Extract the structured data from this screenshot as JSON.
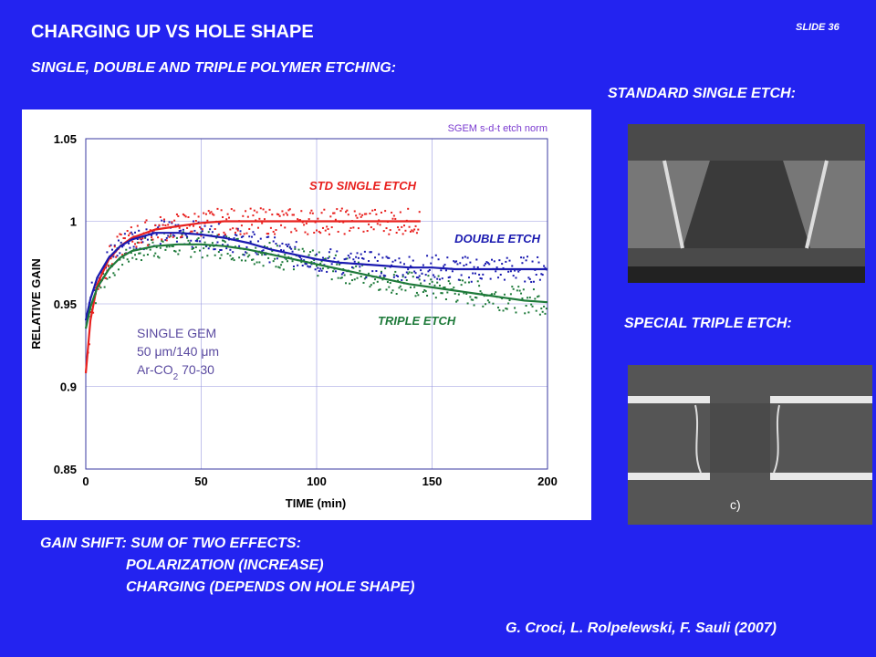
{
  "slide": {
    "title": "CHARGING UP VS HOLE SHAPE",
    "subtitle": "SINGLE, DOUBLE AND TRIPLE POLYMER ETCHING:",
    "number": "SLIDE 36",
    "std_label": "STANDARD SINGLE ETCH:",
    "special_label": "SPECIAL TRIPLE ETCH:",
    "photo2_caption": "c)",
    "gain_heading": "GAIN SHIFT: SUM OF TWO EFFECTS:",
    "gain_items": [
      "POLARIZATION (INCREASE)",
      "CHARGING (DEPENDS ON HOLE SHAPE)"
    ],
    "credit": "G. Croci, L. Rolpelewski, F. Sauli (2007)"
  },
  "chart_data": {
    "type": "scatter",
    "title": "SGEM s-d-t etch norm",
    "xlabel": "TIME (min)",
    "ylabel": "RELATIVE GAIN",
    "xlim": [
      0,
      200
    ],
    "ylim": [
      0.85,
      1.05
    ],
    "xticks": [
      "0",
      "50",
      "100",
      "150",
      "200"
    ],
    "yticks": [
      "0.85",
      "0.9",
      "0.95",
      "1",
      "1.05"
    ],
    "grid": true,
    "annotation": {
      "line1": "SINGLE GEM",
      "line2": "50 μm/140 μm",
      "line3_main": "Ar-CO",
      "line3_sub": "2",
      "line3_end": " 70-30"
    },
    "series": [
      {
        "name": "STD SINGLE ETCH",
        "color": "#e8201e",
        "x": [
          0,
          2,
          5,
          10,
          15,
          20,
          30,
          40,
          50,
          60,
          70,
          80,
          90,
          100,
          110,
          120,
          130,
          140,
          145
        ],
        "fit": [
          0.908,
          0.94,
          0.962,
          0.977,
          0.985,
          0.99,
          0.995,
          0.997,
          0.999,
          1.0,
          1.0,
          1.0,
          1.0,
          1.0,
          1.0,
          1.0,
          1.0,
          1.0,
          1.0
        ]
      },
      {
        "name": "DOUBLE ETCH",
        "color": "#1a1ab0",
        "x": [
          0,
          2,
          5,
          10,
          15,
          20,
          30,
          40,
          50,
          60,
          70,
          80,
          90,
          100,
          110,
          120,
          130,
          140,
          150,
          160,
          170,
          180,
          190,
          200
        ],
        "fit": [
          0.94,
          0.953,
          0.966,
          0.978,
          0.985,
          0.989,
          0.993,
          0.993,
          0.992,
          0.99,
          0.987,
          0.983,
          0.98,
          0.977,
          0.975,
          0.974,
          0.973,
          0.972,
          0.972,
          0.971,
          0.971,
          0.971,
          0.971,
          0.971
        ]
      },
      {
        "name": "TRIPLE ETCH",
        "color": "#1e7a3a",
        "x": [
          0,
          2,
          5,
          10,
          15,
          20,
          30,
          40,
          50,
          60,
          70,
          80,
          90,
          100,
          110,
          120,
          130,
          140,
          150,
          160,
          170,
          180,
          190,
          200
        ],
        "fit": [
          0.935,
          0.948,
          0.96,
          0.971,
          0.978,
          0.982,
          0.985,
          0.986,
          0.986,
          0.985,
          0.983,
          0.98,
          0.977,
          0.974,
          0.971,
          0.968,
          0.965,
          0.962,
          0.96,
          0.958,
          0.956,
          0.954,
          0.952,
          0.951
        ]
      }
    ],
    "scatter_spread": 0.008
  }
}
